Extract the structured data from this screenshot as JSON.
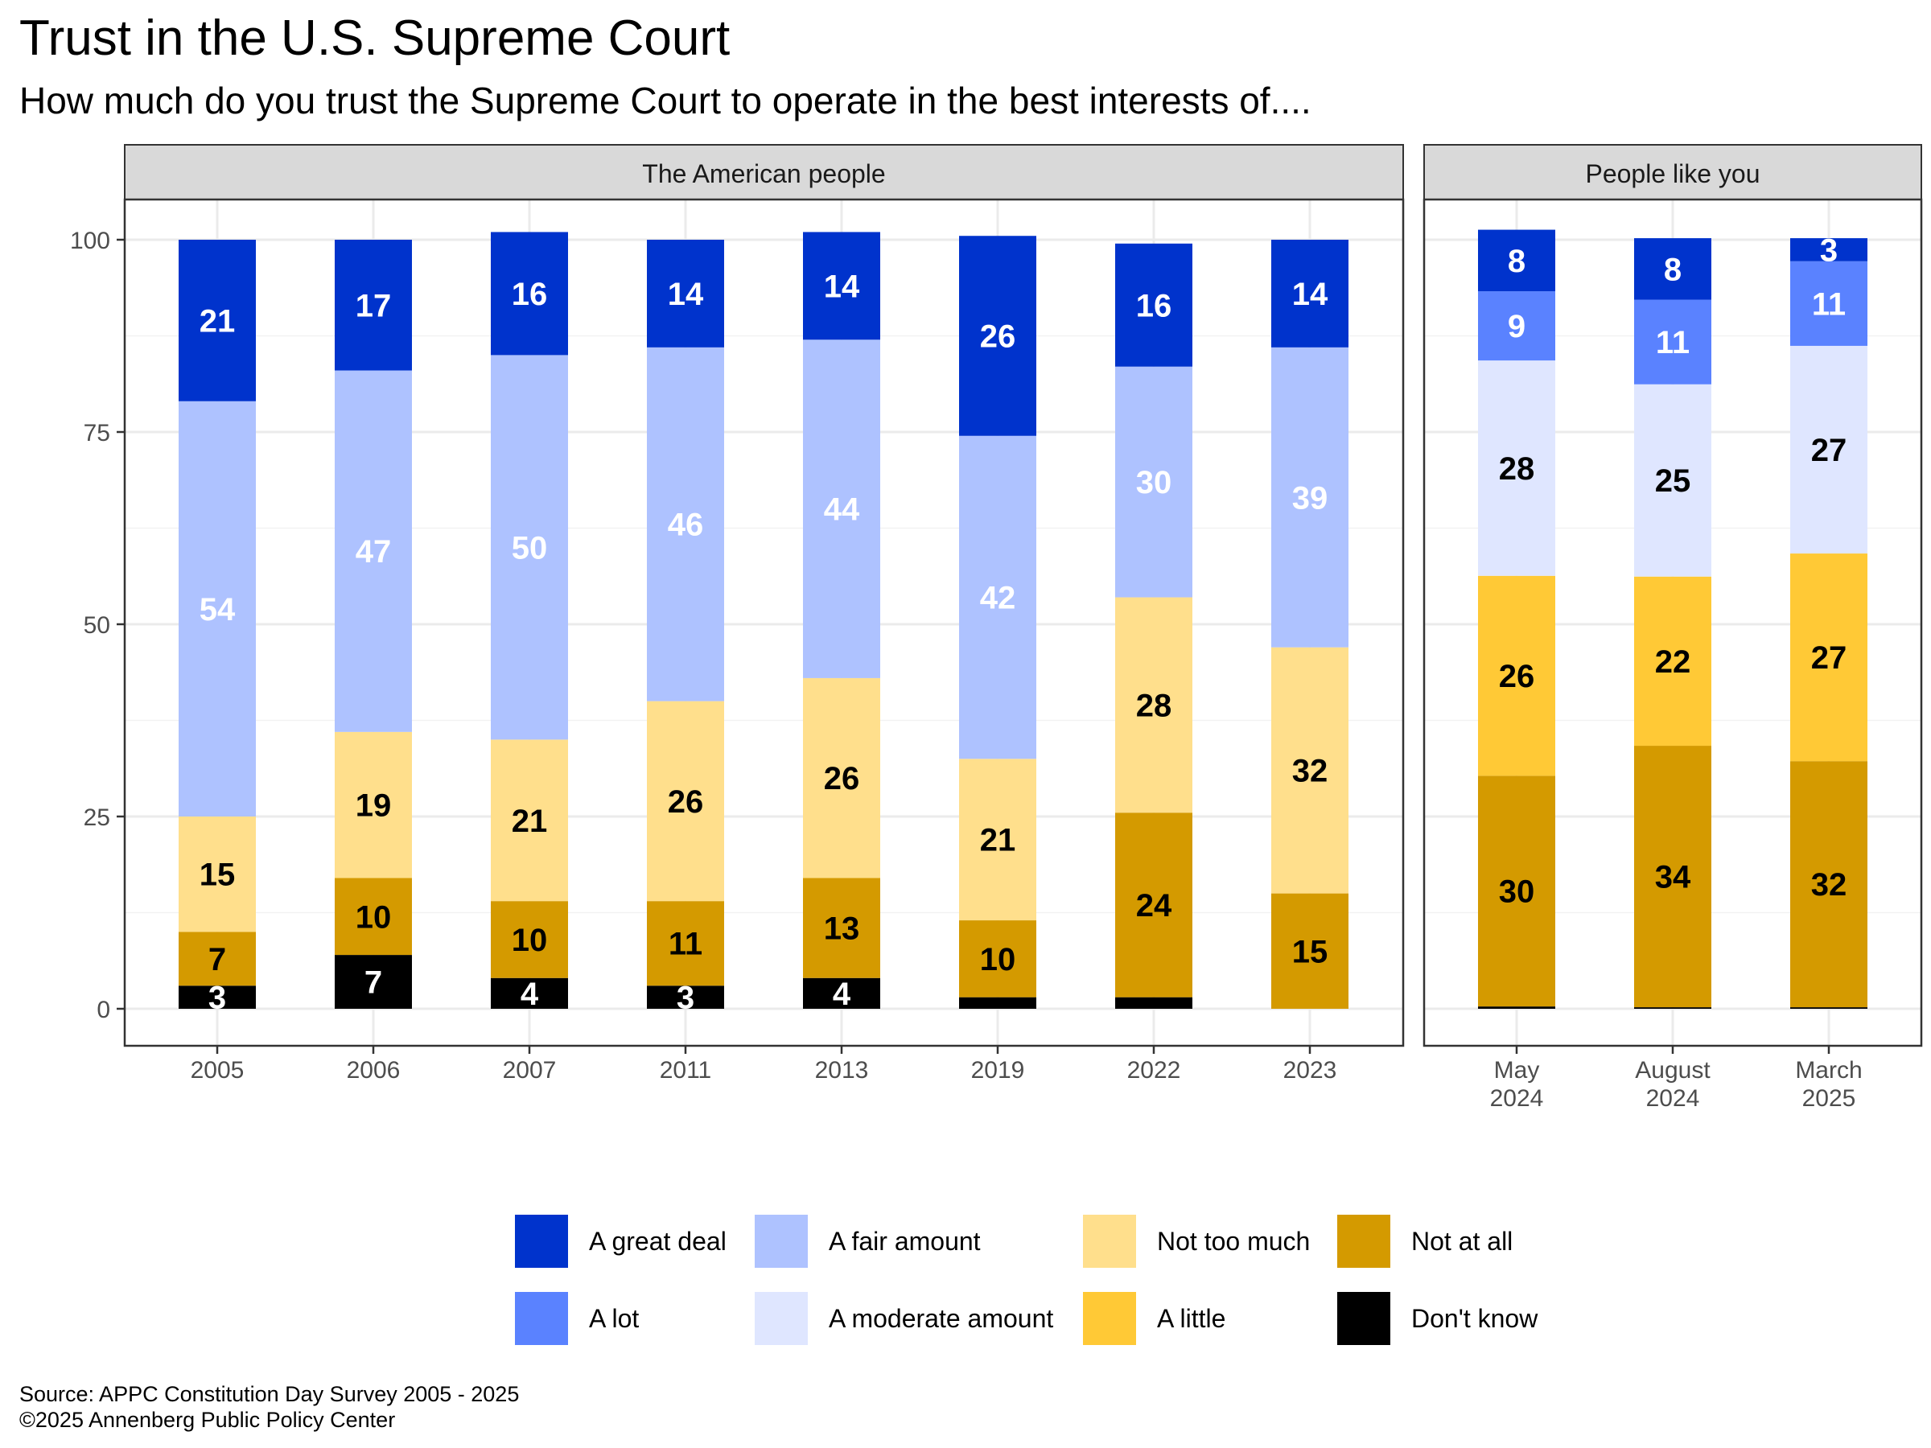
{
  "header": {
    "title": "Trust in the U.S. Supreme Court",
    "subtitle": "How much do you trust the Supreme Court  to operate in the best interests of...."
  },
  "footer": {
    "source": "Source: APPC Constitution Day Survey 2005 - 2025",
    "copyright": "©2025 Annenberg Public Policy Center"
  },
  "legend": {
    "items": [
      {
        "label": "A great deal",
        "color": "#0033CC"
      },
      {
        "label": "A fair amount",
        "color": "#AEC2FF"
      },
      {
        "label": "Not too much",
        "color": "#FFDF8C"
      },
      {
        "label": "Not at all",
        "color": "#D49A00"
      },
      {
        "label": "A lot",
        "color": "#5A82FF"
      },
      {
        "label": "A moderate amount",
        "color": "#DFE6FF"
      },
      {
        "label": "A little",
        "color": "#FFC936"
      },
      {
        "label": "Don't know",
        "color": "#000000"
      }
    ]
  },
  "chart_data": {
    "type": "bar",
    "stacked": true,
    "ylim": [
      0,
      100
    ],
    "yticks": [
      0,
      25,
      50,
      75,
      100
    ],
    "grid": true,
    "legend_position": "bottom",
    "panels": [
      {
        "title": "The American people",
        "categories": [
          "2005",
          "2006",
          "2007",
          "2011",
          "2013",
          "2019",
          "2022",
          "2023"
        ],
        "series": [
          {
            "name": "Don't know",
            "color": "#000000",
            "label_color": "#ffffff",
            "values": [
              3,
              7,
              4,
              3,
              4,
              1.5,
              1.5,
              0
            ]
          },
          {
            "name": "Not at all",
            "color": "#D49A00",
            "label_color": "#000000",
            "values": [
              7,
              10,
              10,
              11,
              13,
              10,
              24,
              15
            ]
          },
          {
            "name": "Not too much",
            "color": "#FFDF8C",
            "label_color": "#000000",
            "values": [
              15,
              19,
              21,
              26,
              26,
              21,
              28,
              32
            ]
          },
          {
            "name": "A fair amount",
            "color": "#AEC2FF",
            "label_color": "#ffffff",
            "values": [
              54,
              47,
              50,
              46,
              44,
              42,
              30,
              39
            ]
          },
          {
            "name": "A great deal",
            "color": "#0033CC",
            "label_color": "#ffffff",
            "values": [
              21,
              17,
              16,
              14,
              14,
              26,
              16,
              14
            ]
          }
        ]
      },
      {
        "title": "People like you",
        "categories": [
          [
            "May",
            "2024"
          ],
          [
            "August",
            "2024"
          ],
          [
            "March",
            "2025"
          ]
        ],
        "series": [
          {
            "name": "Don't know",
            "color": "#000000",
            "label_color": "#ffffff",
            "values": [
              0.3,
              0.2,
              0.2
            ]
          },
          {
            "name": "Not at all",
            "color": "#D49A00",
            "label_color": "#000000",
            "values": [
              30,
              34,
              32
            ]
          },
          {
            "name": "A little",
            "color": "#FFC936",
            "label_color": "#000000",
            "values": [
              26,
              22,
              27
            ]
          },
          {
            "name": "A moderate amount",
            "color": "#DFE6FF",
            "label_color": "#000000",
            "values": [
              28,
              25,
              27
            ]
          },
          {
            "name": "A lot",
            "color": "#5A82FF",
            "label_color": "#ffffff",
            "values": [
              9,
              11,
              11
            ]
          },
          {
            "name": "A great deal",
            "color": "#0033CC",
            "label_color": "#ffffff",
            "values": [
              8,
              8,
              3
            ]
          }
        ]
      }
    ]
  }
}
